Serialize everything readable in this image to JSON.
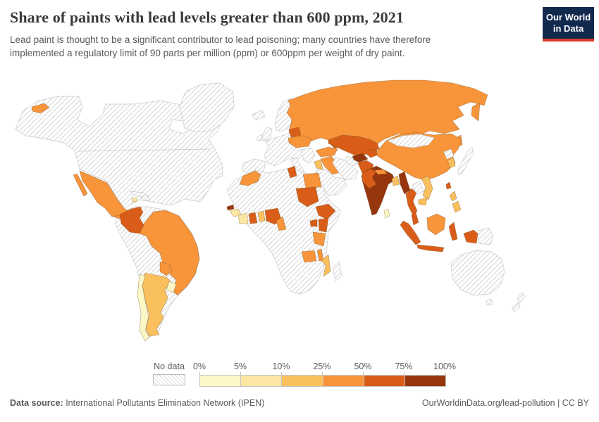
{
  "header": {
    "title": "Share of paints with lead levels greater than 600 ppm, 2021",
    "subtitle": "Lead paint is thought to be a significant contributor to lead poisoning; many countries have therefore implemented a regulatory limit of 90 parts per million (ppm) or 600ppm per weight of dry paint.",
    "logo": {
      "line1": "Our World",
      "line2": "in Data",
      "bg_color": "#12294e",
      "accent_color": "#d93a2b",
      "text_color": "#ffffff"
    }
  },
  "footer": {
    "datasource_label": "Data source:",
    "datasource_value": " International Pollutants Elimination Network (IPEN)",
    "right_text": "OurWorldinData.org/lead-pollution | CC BY"
  },
  "chart_data": {
    "type": "choropleth_map",
    "title": "Share of paints with lead levels greater than 600 ppm, 2021",
    "year": "2021",
    "unit": "share of analyzed paints with lead concentration above 600 ppm",
    "legend": {
      "no_data_label": "No data",
      "no_data_pattern": "diagonal-hatch",
      "tick_labels": [
        "0%",
        "5%",
        "10%",
        "25%",
        "50%",
        "75%",
        "100%"
      ],
      "bin_ranges": [
        "0-5%",
        "5-10%",
        "10-25%",
        "25-50%",
        "50-75%",
        "75-100%"
      ],
      "bin_colors": [
        "#fcf7c7",
        "#fde5a3",
        "#fac05e",
        "#f8943a",
        "#d95d18",
        "#97350c"
      ]
    },
    "countries": [
      {
        "id": "usa-canada",
        "name": "United States & Canada",
        "bin": null
      },
      {
        "id": "greenland",
        "name": "Greenland",
        "bin": null
      },
      {
        "id": "iceland",
        "name": "Iceland",
        "bin": null
      },
      {
        "id": "uk",
        "name": "United Kingdom",
        "bin": null
      },
      {
        "id": "ireland",
        "name": "Ireland",
        "bin": null
      },
      {
        "id": "scandinavia",
        "name": "Scandinavia & Finland",
        "bin": null
      },
      {
        "id": "europe",
        "name": "Mainland Europe",
        "bin": null
      },
      {
        "id": "iberia",
        "name": "Spain & Portugal",
        "bin": null
      },
      {
        "id": "italy",
        "name": "Italy",
        "bin": null
      },
      {
        "id": "balkans",
        "name": "Balkans & Greece",
        "bin": null
      },
      {
        "id": "cuba",
        "name": "Cuba",
        "bin": null
      },
      {
        "id": "hispaniola",
        "name": "Hispaniola",
        "bin": null
      },
      {
        "id": "jamaica",
        "name": "Jamaica",
        "bin": 1
      },
      {
        "id": "mexico",
        "name": "Mexico",
        "bin": 3
      },
      {
        "id": "honduras-nicaragua",
        "name": "Honduras & Nicaragua",
        "bin": 3
      },
      {
        "id": "costa-rica-panama",
        "name": "Costa Rica & Panama",
        "bin": 4
      },
      {
        "id": "south-america-other",
        "name": "Venezuela, Peru & Bolivia",
        "bin": null
      },
      {
        "id": "colombia",
        "name": "Colombia",
        "bin": 4
      },
      {
        "id": "brazil",
        "name": "Brazil",
        "bin": 3
      },
      {
        "id": "paraguay",
        "name": "Paraguay",
        "bin": 3
      },
      {
        "id": "argentina",
        "name": "Argentina",
        "bin": 2
      },
      {
        "id": "chile",
        "name": "Chile",
        "bin": 0
      },
      {
        "id": "uruguay",
        "name": "Uruguay",
        "bin": 0
      },
      {
        "id": "russia",
        "name": "Russia",
        "bin": 3
      },
      {
        "id": "belarus",
        "name": "Belarus",
        "bin": 4
      },
      {
        "id": "ukraine",
        "name": "Ukraine",
        "bin": 3
      },
      {
        "id": "turkey",
        "name": "Turkey",
        "bin": 3
      },
      {
        "id": "caucasus",
        "name": "Georgia, Armenia & Azerbaijan",
        "bin": 4
      },
      {
        "id": "syria-iraq",
        "name": "Syria & Iraq",
        "bin": 3
      },
      {
        "id": "jordan-israel",
        "name": "Jordan & Israel",
        "bin": 2
      },
      {
        "id": "saudi-arabia",
        "name": "Arabian Peninsula",
        "bin": null
      },
      {
        "id": "iran",
        "name": "Iran",
        "bin": null
      },
      {
        "id": "turkmenistan",
        "name": "Turkmenistan",
        "bin": null
      },
      {
        "id": "kazakhstan",
        "name": "Kazakhstan",
        "bin": 4
      },
      {
        "id": "uzbekistan",
        "name": "Uzbekistan",
        "bin": 5
      },
      {
        "id": "kyrgyzstan-tajikistan",
        "name": "Kyrgyzstan & Tajikistan",
        "bin": 4
      },
      {
        "id": "afghanistan",
        "name": "Afghanistan",
        "bin": 4
      },
      {
        "id": "pakistan",
        "name": "Pakistan",
        "bin": 4
      },
      {
        "id": "india",
        "name": "India",
        "bin": 5
      },
      {
        "id": "nepal",
        "name": "Nepal",
        "bin": 3
      },
      {
        "id": "bangladesh",
        "name": "Bangladesh",
        "bin": 2
      },
      {
        "id": "sri-lanka",
        "name": "Sri Lanka",
        "bin": 0
      },
      {
        "id": "myanmar",
        "name": "Myanmar",
        "bin": 5
      },
      {
        "id": "thailand",
        "name": "Thailand",
        "bin": 4
      },
      {
        "id": "laos",
        "name": "Laos",
        "bin": null
      },
      {
        "id": "vietnam",
        "name": "Vietnam",
        "bin": 2
      },
      {
        "id": "cambodia",
        "name": "Cambodia",
        "bin": 2
      },
      {
        "id": "malaysia",
        "name": "Malaysia",
        "bin": 4
      },
      {
        "id": "borneo",
        "name": "Borneo (Malaysia/Indonesia)",
        "bin": 3
      },
      {
        "id": "indonesia",
        "name": "Indonesia",
        "bin": 4
      },
      {
        "id": "papua-new-guinea",
        "name": "Papua New Guinea",
        "bin": null
      },
      {
        "id": "philippines",
        "name": "Philippines",
        "bin": 2
      },
      {
        "id": "china",
        "name": "China",
        "bin": 3
      },
      {
        "id": "mongolia",
        "name": "Mongolia",
        "bin": null
      },
      {
        "id": "north-korea",
        "name": "North Korea",
        "bin": null
      },
      {
        "id": "south-korea",
        "name": "South Korea",
        "bin": 2
      },
      {
        "id": "japan",
        "name": "Japan",
        "bin": null
      },
      {
        "id": "taiwan",
        "name": "Taiwan",
        "bin": 4
      },
      {
        "id": "australia",
        "name": "Australia",
        "bin": null
      },
      {
        "id": "new-zealand",
        "name": "New Zealand",
        "bin": null
      },
      {
        "id": "africa-other",
        "name": "Other Africa",
        "bin": null
      },
      {
        "id": "morocco",
        "name": "Morocco",
        "bin": 3
      },
      {
        "id": "tunisia",
        "name": "Tunisia",
        "bin": 4
      },
      {
        "id": "egypt",
        "name": "Egypt",
        "bin": 3
      },
      {
        "id": "senegal",
        "name": "Senegal",
        "bin": 5
      },
      {
        "id": "guinea",
        "name": "Guinea",
        "bin": 1
      },
      {
        "id": "cote-divoire",
        "name": "Côte d'Ivoire",
        "bin": 1
      },
      {
        "id": "ghana",
        "name": "Ghana",
        "bin": 4
      },
      {
        "id": "togo-benin",
        "name": "Togo & Benin",
        "bin": 2
      },
      {
        "id": "nigeria",
        "name": "Nigeria",
        "bin": 4
      },
      {
        "id": "cameroon",
        "name": "Cameroon",
        "bin": 3
      },
      {
        "id": "sudan",
        "name": "Sudan",
        "bin": 4
      },
      {
        "id": "ethiopia",
        "name": "Ethiopia",
        "bin": 4
      },
      {
        "id": "uganda",
        "name": "Uganda",
        "bin": 4
      },
      {
        "id": "kenya",
        "name": "Kenya",
        "bin": 4
      },
      {
        "id": "tanzania",
        "name": "Tanzania",
        "bin": 3
      },
      {
        "id": "zambia",
        "name": "Zambia",
        "bin": 3
      },
      {
        "id": "malawi",
        "name": "Malawi",
        "bin": 3
      },
      {
        "id": "mozambique",
        "name": "Mozambique",
        "bin": 2
      },
      {
        "id": "madagascar",
        "name": "Madagascar",
        "bin": null
      }
    ]
  }
}
